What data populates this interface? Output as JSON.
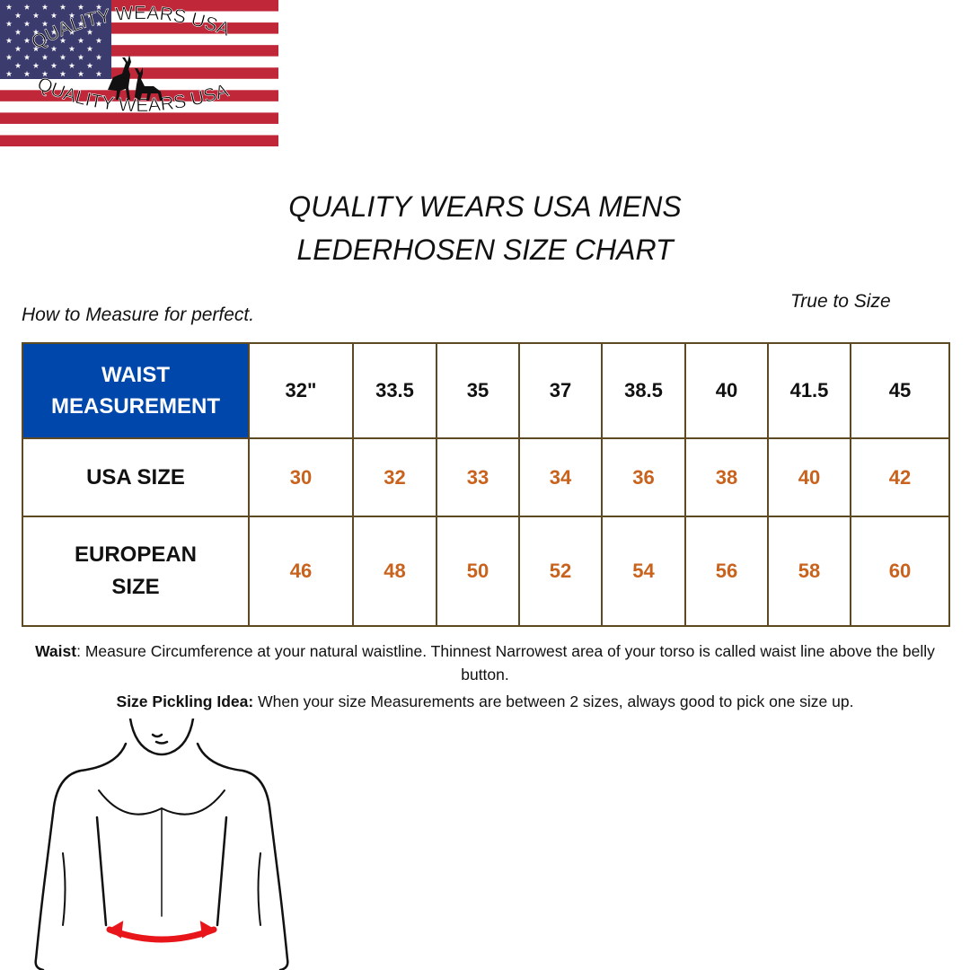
{
  "logo": {
    "text_top": "QUALITY WEARS USA",
    "text_bottom": "QUALITY WEARS USA",
    "colors": {
      "red": "#c0283a",
      "blue": "#3c3b6e",
      "white": "#ffffff"
    }
  },
  "title": {
    "line1": "QUALITY WEARS USA MENS",
    "line2": "LEDERHOSEN SIZE CHART"
  },
  "how_to": "How to Measure for perfect.",
  "true_to_size": "True to Size",
  "table": {
    "header": "WAIST MEASUREMENT",
    "waist": [
      "32\"",
      "33.5",
      "35",
      "37",
      "38.5",
      "40",
      "41.5",
      "45"
    ],
    "usa_label": "USA SIZE",
    "usa": [
      "30",
      "32",
      "33",
      "34",
      "36",
      "38",
      "40",
      "42"
    ],
    "eu_label": "EUROPEAN SIZE",
    "eu": [
      "46",
      "48",
      "50",
      "52",
      "54",
      "56",
      "58",
      "60"
    ],
    "colors": {
      "header_bg": "#0047ab",
      "value": "#c8621c",
      "border": "#5e4a22"
    }
  },
  "notes": {
    "waist_label": "Waist",
    "waist_text": ": Measure Circumference at your natural waistline. Thinnest Narrowest area of your torso is called waist line above the belly button.",
    "tip_label": "Size Pickling Idea:",
    "tip_text": " When your size Measurements are between 2 sizes, always good to pick one size up."
  }
}
